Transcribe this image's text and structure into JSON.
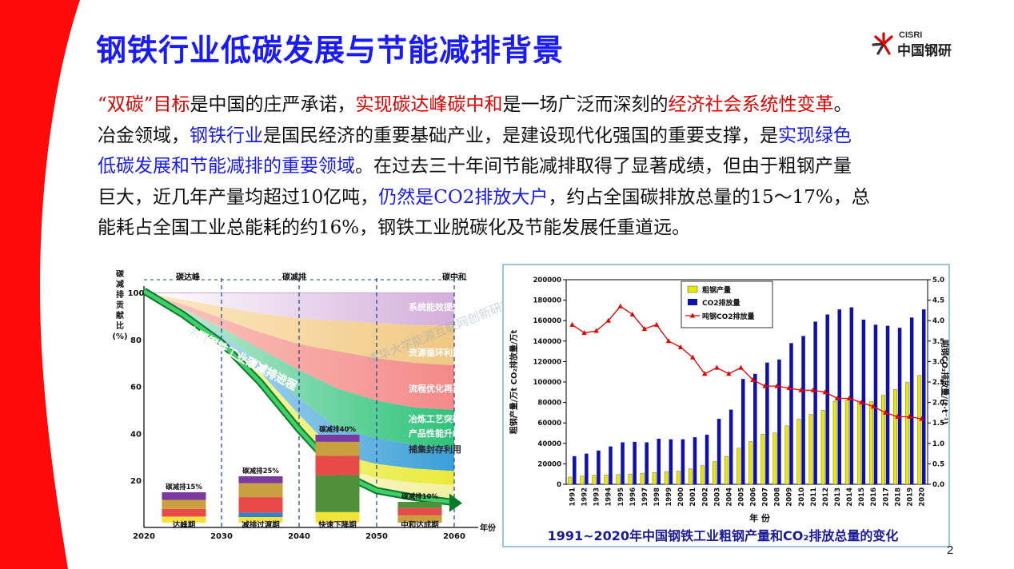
{
  "slide": {
    "title": "钢铁行业低碳发展与节能减排背景",
    "page_number": "2",
    "logo": {
      "text_en": "CISRI",
      "text_cn": "中国钢研"
    },
    "colors": {
      "accent_red": "#e00000",
      "accent_blue": "#1a1aee",
      "title_blue": "#1a1aff"
    }
  },
  "paragraph": {
    "lines": [
      [
        {
          "t": "“双碳”目标",
          "c": "red"
        },
        {
          "t": "是中国的庄严承诺，",
          "c": ""
        },
        {
          "t": "实现碳达峰碳中和",
          "c": "red"
        },
        {
          "t": "是一场广泛而深刻的",
          "c": ""
        },
        {
          "t": "经济社会系统性变革",
          "c": "red"
        },
        {
          "t": "。",
          "c": ""
        }
      ],
      [
        {
          "t": "冶金领域，",
          "c": ""
        },
        {
          "t": "钢铁行业",
          "c": "blue"
        },
        {
          "t": "是国民经济的重要基础产业，是建设现代化强国的重要支撑，是",
          "c": ""
        },
        {
          "t": "实现绿色",
          "c": "blue"
        }
      ],
      [
        {
          "t": "低碳发展和节能减排的重要领域",
          "c": "blue"
        },
        {
          "t": "。在过去三十年间节能减排取得了显著成绩，但由于粗钢产量",
          "c": ""
        }
      ],
      [
        {
          "t": "巨大，近几年产量均超过10亿吨，",
          "c": ""
        },
        {
          "t": "仍然是CO2排放大户",
          "c": "blue"
        },
        {
          "t": "，约占全国碳排放总量的15～17%，总",
          "c": ""
        }
      ],
      [
        {
          "t": "能耗占全国工业总能耗的约16%，钢铁工业脱碳化及节能发展任重道远。",
          "c": ""
        }
      ]
    ]
  },
  "left_chart": {
    "y_title_chars": [
      "碳",
      "减",
      "排",
      "贡",
      "献",
      "比",
      "(%)"
    ],
    "y_ticks": [
      "100",
      "80",
      "60",
      "40",
      "20"
    ],
    "x_ticks": [
      "2020",
      "2030",
      "2040",
      "2050",
      "2060"
    ],
    "x_unit": "年份",
    "phase_labels": [
      "碳达峰",
      "碳减排",
      "碳中和"
    ],
    "bands": [
      "系统能效提升",
      "资源循环利用",
      "流程优化再造",
      "冶炼工艺突破",
      "产品性能升级",
      "捕集封存利用"
    ],
    "arrow_label": "中国钢铁工业碳减排进程",
    "stack_labels": [
      "碳减排15%",
      "碳减排25%",
      "碳减排40%",
      "碳减排10%"
    ],
    "period_labels": [
      "达峰期",
      "减排过渡期",
      "快速下降期",
      "中和达成期"
    ],
    "watermark": "清华大学能源互联网创新研究院"
  },
  "chart_data": {
    "type": "bar",
    "title": "",
    "caption": "1991~2020年中国钢铁工业粗钢产量和CO₂排放总量的变化",
    "xlabel": "年 份",
    "ylabel_left": "粗钢产量/万t CO₂排放量/万t",
    "ylabel_right": "吨钢CO₂排放量/(t·t⁻¹)",
    "ylim_left": [
      0,
      200000
    ],
    "ylim_right": [
      0,
      5.0
    ],
    "y_ticks_left": [
      "200000",
      "180000",
      "160000",
      "140000",
      "120000",
      "100000",
      "80000",
      "60000",
      "40000",
      "20000",
      "0"
    ],
    "y_ticks_right": [
      "5.0",
      "4.5",
      "4.0",
      "3.5",
      "3.0",
      "2.5",
      "2.0",
      "1.5",
      "1.0",
      "0.5",
      "0.0"
    ],
    "legend_position": "top-left",
    "categories": [
      "1991",
      "1992",
      "1993",
      "1994",
      "1995",
      "1996",
      "1997",
      "1998",
      "1999",
      "2000",
      "2001",
      "2002",
      "2003",
      "2004",
      "2005",
      "2006",
      "2007",
      "2008",
      "2009",
      "2010",
      "2011",
      "2012",
      "2013",
      "2014",
      "2015",
      "2016",
      "2017",
      "2018",
      "2019",
      "2020"
    ],
    "series": [
      {
        "name": "粗钢产量",
        "kind": "bar",
        "axis": "left",
        "color": "#e8e800",
        "values": [
          7100,
          8100,
          8950,
          9260,
          9540,
          10100,
          10890,
          11560,
          12430,
          12850,
          15160,
          18240,
          22230,
          27280,
          35320,
          41880,
          48930,
          50300,
          57220,
          63720,
          68330,
          72390,
          81310,
          82270,
          80380,
          80840,
          87070,
          92830,
          99630,
          106480
        ]
      },
      {
        "name": "CO2排放量",
        "kind": "bar",
        "axis": "left",
        "color": "#1010b0",
        "values": [
          27500,
          30000,
          33000,
          37000,
          41000,
          41500,
          41000,
          44500,
          44000,
          44000,
          46000,
          48500,
          64000,
          73000,
          103000,
          108000,
          119000,
          122000,
          138000,
          145000,
          159000,
          166000,
          171000,
          173000,
          161000,
          156000,
          155000,
          153000,
          163000,
          171000
        ]
      },
      {
        "name": "吨钢CO2排放量",
        "kind": "line",
        "axis": "right",
        "color": "#e00000",
        "values": [
          3.9,
          3.7,
          3.75,
          4.0,
          4.35,
          4.15,
          3.8,
          3.9,
          3.5,
          3.35,
          3.1,
          2.7,
          2.85,
          2.7,
          2.85,
          2.55,
          2.4,
          2.4,
          2.35,
          2.3,
          2.3,
          2.25,
          2.1,
          2.1,
          2.0,
          1.9,
          1.75,
          1.65,
          1.65,
          1.6
        ]
      }
    ]
  }
}
